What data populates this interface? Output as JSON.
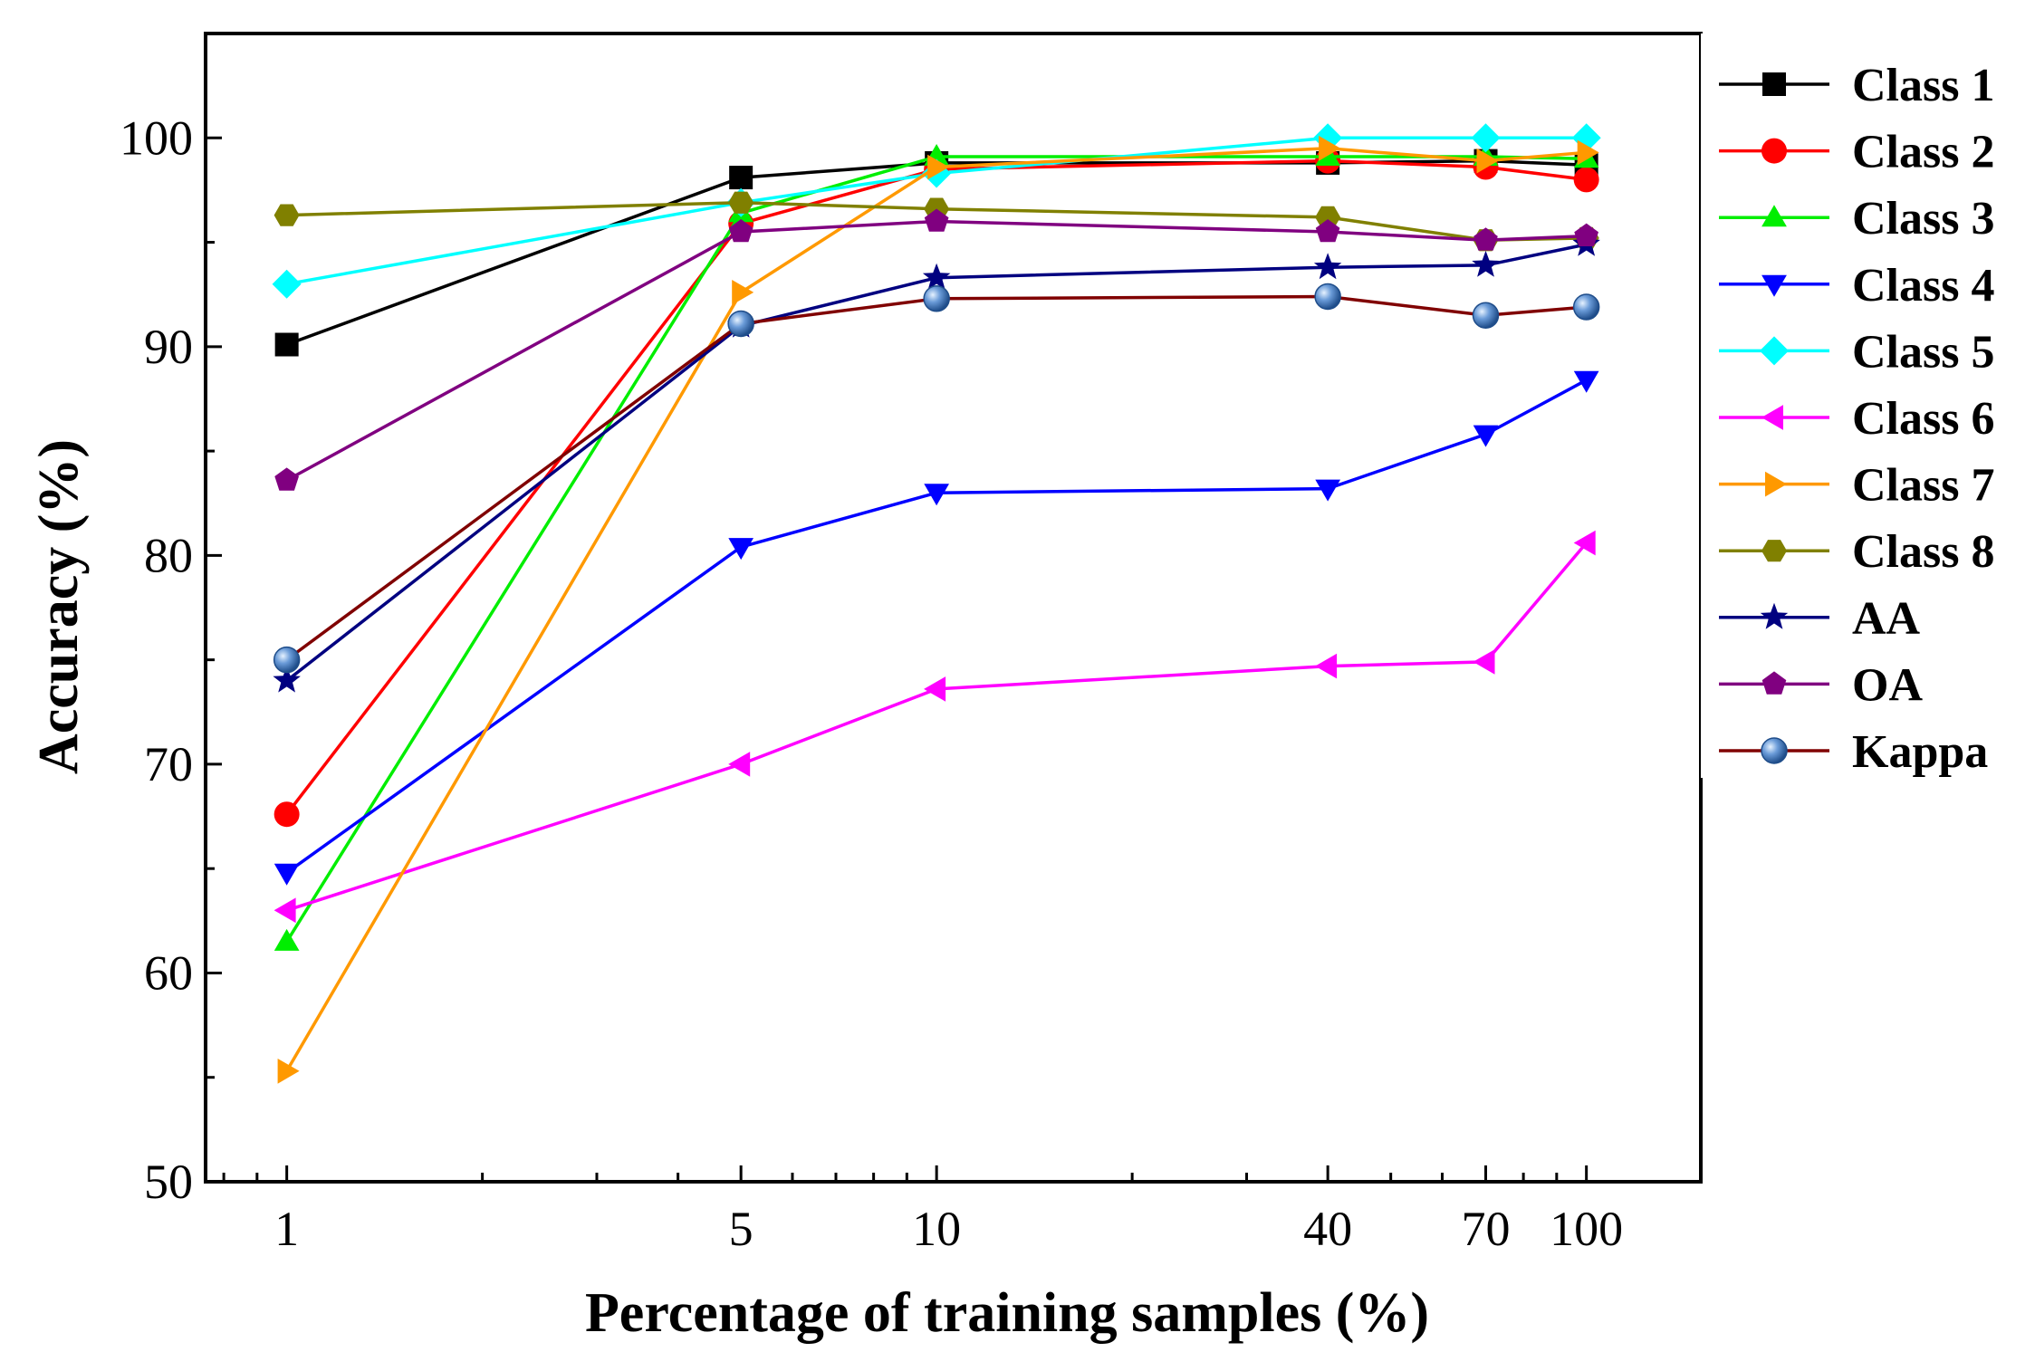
{
  "chart_data": {
    "type": "line",
    "title": "",
    "xlabel": "Percentage of training samples (%)",
    "ylabel": "Accuracy (%)",
    "x_scale": "log",
    "xlim": [
      0.75,
      150
    ],
    "ylim": [
      50,
      105
    ],
    "x": [
      1,
      5,
      10,
      40,
      70,
      100
    ],
    "x_tick_labels": [
      "1",
      "5",
      "10",
      "40",
      "70",
      "100"
    ],
    "y_ticks": [
      50,
      60,
      70,
      80,
      90,
      100
    ],
    "y_tick_labels": [
      "50",
      "60",
      "70",
      "80",
      "90",
      "100"
    ],
    "legend_position": "right",
    "grid": false,
    "series": [
      {
        "name": "Class 1",
        "color": "#000000",
        "marker": "square",
        "values": [
          90.1,
          98.1,
          98.8,
          98.8,
          98.9,
          98.7
        ]
      },
      {
        "name": "Class 2",
        "color": "#ff0000",
        "marker": "circle",
        "values": [
          67.6,
          95.9,
          98.5,
          98.9,
          98.6,
          98.0
        ]
      },
      {
        "name": "Class 3",
        "color": "#00ee00",
        "marker": "triangle-up",
        "values": [
          61.5,
          96.4,
          99.1,
          99.1,
          99.1,
          99.0
        ]
      },
      {
        "name": "Class 4",
        "color": "#0000ff",
        "marker": "triangle-down",
        "values": [
          64.8,
          80.4,
          83.0,
          83.2,
          85.8,
          88.4
        ]
      },
      {
        "name": "Class 5",
        "color": "#00ffff",
        "marker": "diamond",
        "values": [
          93.0,
          96.9,
          98.3,
          100.0,
          100.0,
          100.0
        ]
      },
      {
        "name": "Class 6",
        "color": "#ff00ff",
        "marker": "triangle-left",
        "values": [
          63.0,
          70.0,
          73.6,
          74.7,
          74.9,
          80.6
        ]
      },
      {
        "name": "Class 7",
        "color": "#ff9900",
        "marker": "triangle-right",
        "values": [
          55.3,
          92.6,
          98.6,
          99.5,
          98.9,
          99.3
        ]
      },
      {
        "name": "Class 8",
        "color": "#808000",
        "marker": "hexagon",
        "values": [
          96.3,
          96.9,
          96.6,
          96.2,
          95.1,
          95.2
        ]
      },
      {
        "name": "AA",
        "color": "#000080",
        "marker": "star",
        "values": [
          74.0,
          91.0,
          93.3,
          93.8,
          93.9,
          94.9
        ]
      },
      {
        "name": "OA",
        "color": "#800080",
        "marker": "pentagon",
        "values": [
          83.6,
          95.5,
          96.0,
          95.5,
          95.1,
          95.3
        ]
      },
      {
        "name": "Kappa",
        "color": "#800000",
        "marker": "sphere",
        "values": [
          75.0,
          91.1,
          92.3,
          92.4,
          91.5,
          91.9
        ]
      }
    ]
  }
}
